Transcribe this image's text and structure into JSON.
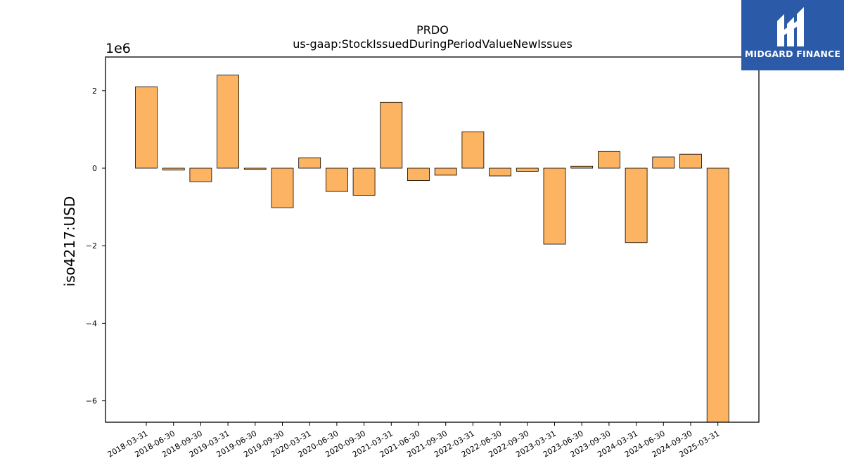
{
  "chart_data": {
    "type": "bar",
    "title": "PRDO",
    "subtitle": "us-gaap:StockIssuedDuringPeriodValueNewIssues",
    "ylabel": "iso4217:USD",
    "xlabel": "",
    "y_scale_label": "1e6",
    "ylim": [
      -6.55,
      2.9
    ],
    "yticks": [
      2,
      0,
      -2,
      -4,
      -6
    ],
    "ytick_labels": [
      "2",
      "0",
      "−2",
      "−4",
      "−6"
    ],
    "categories": [
      "2018-03-31",
      "2018-06-30",
      "2018-09-30",
      "2019-03-31",
      "2019-06-30",
      "2019-09-30",
      "2020-03-31",
      "2020-06-30",
      "2020-09-30",
      "2021-03-31",
      "2021-06-30",
      "2021-09-30",
      "2022-03-31",
      "2022-06-30",
      "2022-09-30",
      "2023-03-31",
      "2023-06-30",
      "2023-09-30",
      "2024-03-31",
      "2024-06-30",
      "2024-09-30",
      "2025-03-31"
    ],
    "values": [
      2.1,
      -0.05,
      -0.35,
      2.4,
      -0.03,
      -1.02,
      0.27,
      -0.6,
      -0.7,
      1.7,
      -0.32,
      -0.18,
      0.94,
      -0.2,
      -0.08,
      -1.96,
      0.05,
      0.43,
      -1.92,
      0.29,
      0.36,
      -6.55
    ],
    "bar_color": "#fdb462",
    "edge_color": "#000000",
    "grid": false,
    "legend": "none"
  },
  "logo": {
    "text": "MIDGARD FINANCE",
    "bg_color": "#2b5aa8",
    "icon": "midgard-logo-icon"
  }
}
